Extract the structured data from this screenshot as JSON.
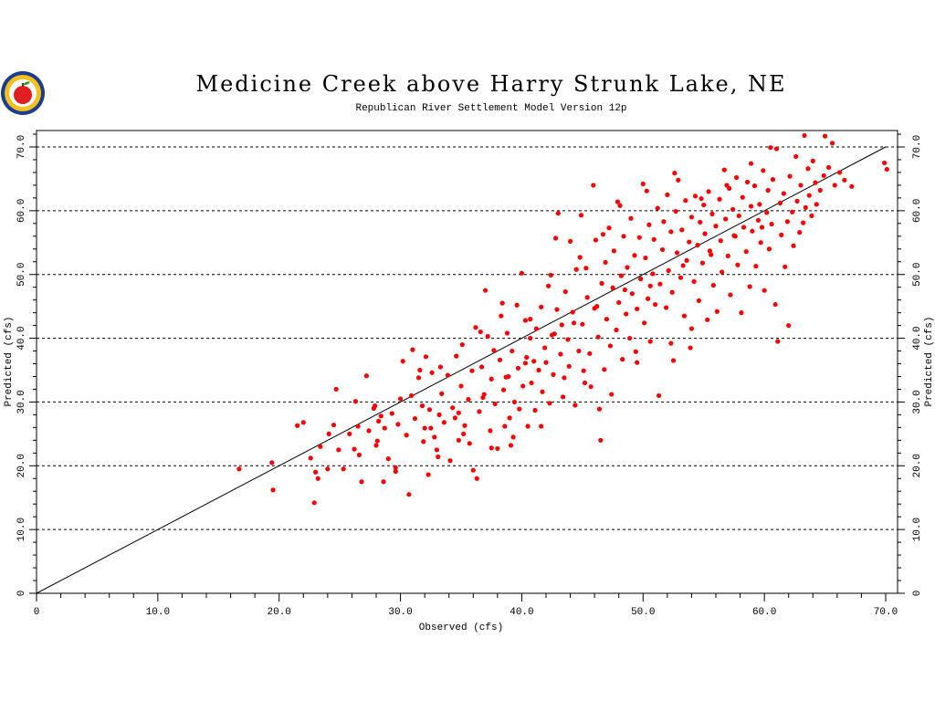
{
  "chart_data": {
    "type": "scatter",
    "title": "Medicine Creek above Harry Strunk Lake, NE",
    "subtitle": "Republican River Settlement Model Version 12p",
    "xlabel": "Observed (cfs)",
    "ylabel": "Predicted (cfs)",
    "ylabel_right": "Predicted (cfs)",
    "xlim": [
      0,
      70
    ],
    "ylim": [
      0,
      72
    ],
    "x_ticks": [
      {
        "v": 0,
        "label": "0"
      },
      {
        "v": 10,
        "label": "10.0"
      },
      {
        "v": 20,
        "label": "20.0"
      },
      {
        "v": 30,
        "label": "30.0"
      },
      {
        "v": 40,
        "label": "40.0"
      },
      {
        "v": 50,
        "label": "50.0"
      },
      {
        "v": 60,
        "label": "60.0"
      },
      {
        "v": 70,
        "label": "70.0"
      }
    ],
    "y_ticks": [
      {
        "v": 0,
        "label": "0"
      },
      {
        "v": 10,
        "label": "10.0"
      },
      {
        "v": 20,
        "label": "20.0"
      },
      {
        "v": 30,
        "label": "30.0"
      },
      {
        "v": 40,
        "label": "40.0"
      },
      {
        "v": 50,
        "label": "50.0"
      },
      {
        "v": 60,
        "label": "60.0"
      },
      {
        "v": 70,
        "label": "70.0"
      }
    ],
    "grid": "horizontal dashed at major y ticks",
    "reference_line": {
      "x": [
        0,
        70
      ],
      "y": [
        0,
        70
      ]
    },
    "point_color": "#ff0000",
    "line_color": "#000000",
    "points": [
      [
        16.7,
        19.5
      ],
      [
        19.4,
        20.5
      ],
      [
        19.5,
        16.2
      ],
      [
        21.5,
        26.3
      ],
      [
        22.0,
        26.8
      ],
      [
        22.6,
        21.2
      ],
      [
        22.9,
        14.2
      ],
      [
        23.0,
        19.0
      ],
      [
        23.2,
        18.0
      ],
      [
        23.4,
        23.0
      ],
      [
        24.0,
        19.5
      ],
      [
        24.5,
        26.4
      ],
      [
        24.7,
        32.0
      ],
      [
        24.9,
        22.5
      ],
      [
        25.3,
        19.5
      ],
      [
        25.8,
        25.0
      ],
      [
        26.3,
        30.1
      ],
      [
        26.6,
        21.7
      ],
      [
        26.8,
        17.5
      ],
      [
        27.2,
        34.1
      ],
      [
        27.4,
        25.5
      ],
      [
        27.8,
        29.0
      ],
      [
        28.0,
        23.2
      ],
      [
        28.2,
        27.0
      ],
      [
        28.4,
        27.8
      ],
      [
        28.6,
        17.5
      ],
      [
        28.7,
        25.9
      ],
      [
        29.0,
        21.1
      ],
      [
        29.3,
        28.2
      ],
      [
        29.6,
        19.7
      ],
      [
        29.8,
        26.5
      ],
      [
        30.2,
        36.4
      ],
      [
        30.5,
        24.8
      ],
      [
        30.7,
        15.5
      ],
      [
        30.9,
        31.0
      ],
      [
        31.0,
        38.2
      ],
      [
        31.2,
        27.4
      ],
      [
        31.5,
        33.8
      ],
      [
        31.8,
        29.4
      ],
      [
        32.0,
        25.9
      ],
      [
        32.1,
        37.1
      ],
      [
        32.3,
        18.6
      ],
      [
        32.4,
        28.8
      ],
      [
        32.6,
        34.6
      ],
      [
        32.8,
        24.5
      ],
      [
        33.0,
        22.5
      ],
      [
        33.2,
        28.0
      ],
      [
        33.4,
        31.3
      ],
      [
        33.6,
        26.8
      ],
      [
        33.9,
        34.2
      ],
      [
        34.1,
        20.8
      ],
      [
        34.3,
        29.1
      ],
      [
        34.5,
        27.5
      ],
      [
        34.8,
        24.0
      ],
      [
        35.0,
        32.5
      ],
      [
        35.1,
        39.0
      ],
      [
        35.3,
        26.3
      ],
      [
        35.6,
        30.4
      ],
      [
        35.7,
        23.5
      ],
      [
        35.9,
        34.9
      ],
      [
        36.0,
        19.3
      ],
      [
        36.2,
        41.7
      ],
      [
        36.3,
        18.0
      ],
      [
        36.5,
        28.5
      ],
      [
        36.7,
        35.5
      ],
      [
        36.9,
        31.2
      ],
      [
        37.0,
        47.5
      ],
      [
        37.2,
        40.3
      ],
      [
        37.4,
        25.5
      ],
      [
        37.5,
        33.6
      ],
      [
        37.7,
        38.1
      ],
      [
        37.8,
        29.7
      ],
      [
        38.0,
        22.7
      ],
      [
        38.2,
        36.6
      ],
      [
        38.3,
        43.5
      ],
      [
        38.5,
        31.9
      ],
      [
        38.6,
        26.2
      ],
      [
        38.8,
        40.8
      ],
      [
        38.9,
        34.0
      ],
      [
        39.0,
        27.5
      ],
      [
        39.2,
        38.0
      ],
      [
        39.3,
        24.5
      ],
      [
        39.4,
        30.0
      ],
      [
        39.6,
        45.2
      ],
      [
        39.7,
        35.3
      ],
      [
        39.8,
        28.9
      ],
      [
        40.0,
        50.2
      ],
      [
        40.1,
        32.5
      ],
      [
        40.3,
        42.8
      ],
      [
        40.4,
        37.0
      ],
      [
        40.5,
        26.2
      ],
      [
        40.7,
        40.0
      ],
      [
        40.8,
        33.0
      ],
      [
        41.0,
        36.4
      ],
      [
        41.1,
        28.7
      ],
      [
        41.2,
        41.5
      ],
      [
        41.4,
        35.0
      ],
      [
        41.6,
        44.9
      ],
      [
        41.7,
        31.6
      ],
      [
        41.9,
        38.5
      ],
      [
        42.0,
        36.2
      ],
      [
        42.2,
        48.2
      ],
      [
        42.3,
        29.8
      ],
      [
        42.5,
        40.5
      ],
      [
        42.6,
        34.3
      ],
      [
        42.8,
        55.7
      ],
      [
        42.9,
        44.5
      ],
      [
        43.0,
        59.6
      ],
      [
        43.2,
        37.5
      ],
      [
        43.3,
        42.1
      ],
      [
        43.5,
        33.8
      ],
      [
        43.6,
        47.3
      ],
      [
        43.8,
        39.8
      ],
      [
        43.9,
        35.6
      ],
      [
        44.0,
        55.2
      ],
      [
        44.2,
        44.1
      ],
      [
        44.4,
        29.5
      ],
      [
        44.5,
        50.8
      ],
      [
        44.7,
        38.0
      ],
      [
        44.9,
        59.3
      ],
      [
        45.0,
        42.2
      ],
      [
        45.1,
        34.9
      ],
      [
        45.3,
        51.0
      ],
      [
        45.4,
        46.4
      ],
      [
        45.6,
        37.6
      ],
      [
        45.7,
        32.4
      ],
      [
        45.9,
        64.0
      ],
      [
        46.0,
        44.7
      ],
      [
        46.1,
        55.4
      ],
      [
        46.3,
        40.2
      ],
      [
        46.4,
        28.9
      ],
      [
        46.5,
        24.0
      ],
      [
        46.6,
        48.6
      ],
      [
        46.8,
        35.1
      ],
      [
        46.9,
        51.9
      ],
      [
        47.0,
        43.0
      ],
      [
        47.2,
        57.3
      ],
      [
        47.3,
        38.8
      ],
      [
        47.5,
        47.9
      ],
      [
        47.6,
        53.7
      ],
      [
        47.8,
        41.3
      ],
      [
        47.9,
        61.4
      ],
      [
        48.0,
        45.6
      ],
      [
        48.2,
        49.8
      ],
      [
        48.3,
        36.7
      ],
      [
        48.4,
        56.0
      ],
      [
        48.6,
        43.8
      ],
      [
        48.7,
        51.1
      ],
      [
        48.9,
        40.0
      ],
      [
        49.0,
        58.8
      ],
      [
        49.1,
        47.0
      ],
      [
        49.3,
        53.0
      ],
      [
        49.4,
        37.9
      ],
      [
        49.5,
        44.6
      ],
      [
        49.7,
        55.8
      ],
      [
        49.8,
        49.3
      ],
      [
        50.0,
        64.2
      ],
      [
        50.1,
        42.4
      ],
      [
        50.2,
        52.6
      ],
      [
        50.4,
        46.2
      ],
      [
        50.5,
        57.8
      ],
      [
        50.6,
        39.5
      ],
      [
        50.8,
        50.1
      ],
      [
        50.9,
        55.5
      ],
      [
        51.0,
        45.3
      ],
      [
        51.2,
        60.4
      ],
      [
        51.3,
        31.0
      ],
      [
        51.4,
        48.5
      ],
      [
        51.6,
        53.9
      ],
      [
        51.7,
        58.3
      ],
      [
        51.9,
        44.8
      ],
      [
        52.0,
        62.5
      ],
      [
        52.1,
        50.6
      ],
      [
        52.3,
        56.7
      ],
      [
        52.4,
        47.2
      ],
      [
        52.5,
        36.5
      ],
      [
        52.7,
        59.9
      ],
      [
        52.8,
        53.4
      ],
      [
        52.9,
        64.8
      ],
      [
        53.1,
        49.5
      ],
      [
        53.2,
        57.0
      ],
      [
        53.4,
        43.5
      ],
      [
        53.5,
        61.6
      ],
      [
        53.6,
        52.2
      ],
      [
        53.8,
        55.1
      ],
      [
        53.9,
        38.5
      ],
      [
        54.0,
        59.0
      ],
      [
        54.2,
        48.9
      ],
      [
        54.3,
        62.3
      ],
      [
        54.5,
        54.6
      ],
      [
        54.6,
        45.9
      ],
      [
        54.7,
        58.2
      ],
      [
        54.9,
        51.8
      ],
      [
        55.0,
        60.9
      ],
      [
        55.1,
        56.4
      ],
      [
        55.3,
        42.9
      ],
      [
        55.4,
        63.0
      ],
      [
        55.6,
        53.1
      ],
      [
        55.7,
        59.5
      ],
      [
        55.8,
        48.3
      ],
      [
        56.0,
        57.6
      ],
      [
        56.1,
        44.2
      ],
      [
        56.3,
        61.8
      ],
      [
        56.4,
        55.3
      ],
      [
        56.5,
        50.4
      ],
      [
        56.7,
        66.4
      ],
      [
        56.8,
        58.7
      ],
      [
        57.0,
        52.9
      ],
      [
        57.1,
        63.5
      ],
      [
        57.2,
        46.8
      ],
      [
        57.4,
        60.2
      ],
      [
        57.5,
        56.1
      ],
      [
        57.7,
        65.2
      ],
      [
        57.8,
        51.5
      ],
      [
        57.9,
        59.2
      ],
      [
        58.1,
        44.0
      ],
      [
        58.2,
        62.1
      ],
      [
        58.3,
        57.4
      ],
      [
        58.5,
        53.6
      ],
      [
        58.6,
        64.5
      ],
      [
        58.8,
        48.1
      ],
      [
        58.9,
        60.7
      ],
      [
        59.0,
        56.8
      ],
      [
        59.2,
        63.9
      ],
      [
        59.3,
        51.3
      ],
      [
        59.5,
        58.5
      ],
      [
        59.6,
        61.0
      ],
      [
        59.7,
        55.0
      ],
      [
        59.9,
        66.3
      ],
      [
        60.0,
        47.5
      ],
      [
        60.2,
        59.7
      ],
      [
        60.3,
        63.2
      ],
      [
        60.4,
        54.0
      ],
      [
        60.6,
        57.9
      ],
      [
        60.7,
        64.9
      ],
      [
        60.9,
        45.3
      ],
      [
        61.0,
        69.7
      ],
      [
        61.1,
        39.5
      ],
      [
        61.3,
        61.2
      ],
      [
        61.4,
        56.2
      ],
      [
        61.6,
        62.7
      ],
      [
        61.7,
        51.2
      ],
      [
        61.9,
        58.3
      ],
      [
        62.0,
        42.0
      ],
      [
        62.1,
        65.4
      ],
      [
        62.3,
        59.8
      ],
      [
        62.4,
        54.5
      ],
      [
        62.6,
        68.5
      ],
      [
        62.7,
        61.5
      ],
      [
        62.9,
        56.6
      ],
      [
        63.0,
        64.0
      ],
      [
        63.2,
        58.1
      ],
      [
        63.3,
        71.8
      ],
      [
        63.4,
        60.5
      ],
      [
        63.6,
        66.6
      ],
      [
        63.7,
        62.4
      ],
      [
        63.9,
        59.2
      ],
      [
        64.0,
        67.8
      ],
      [
        64.2,
        64.4
      ],
      [
        64.3,
        61.0
      ],
      [
        64.6,
        63.2
      ],
      [
        64.9,
        65.5
      ],
      [
        65.0,
        71.7
      ],
      [
        65.3,
        66.8
      ],
      [
        65.6,
        70.6
      ],
      [
        65.8,
        64.0
      ],
      [
        66.2,
        66.0
      ],
      [
        66.6,
        64.8
      ],
      [
        67.2,
        63.8
      ],
      [
        69.9,
        67.5
      ],
      [
        70.1,
        66.5
      ],
      [
        54.0,
        41.5
      ],
      [
        52.3,
        39.2
      ],
      [
        49.5,
        36.2
      ],
      [
        47.4,
        31.2
      ],
      [
        45.2,
        33.0
      ],
      [
        43.4,
        30.8
      ],
      [
        41.6,
        26.2
      ],
      [
        39.1,
        23.2
      ],
      [
        37.5,
        22.8
      ],
      [
        35.2,
        25.0
      ],
      [
        33.1,
        21.4
      ],
      [
        31.9,
        23.8
      ],
      [
        29.6,
        19.1
      ],
      [
        28.1,
        23.9
      ],
      [
        26.2,
        22.6
      ],
      [
        24.1,
        25.0
      ],
      [
        44.8,
        52.7
      ],
      [
        46.7,
        56.3
      ],
      [
        48.1,
        60.8
      ],
      [
        50.3,
        63.1
      ],
      [
        52.6,
        65.9
      ],
      [
        54.8,
        61.9
      ],
      [
        56.9,
        64.0
      ],
      [
        58.9,
        67.4
      ],
      [
        60.5,
        69.9
      ],
      [
        40.7,
        43.0
      ],
      [
        42.4,
        49.9
      ],
      [
        38.4,
        45.5
      ],
      [
        36.6,
        41.0
      ],
      [
        34.6,
        37.2
      ],
      [
        33.3,
        35.5
      ],
      [
        31.6,
        35.0
      ],
      [
        30.0,
        30.5
      ],
      [
        27.9,
        29.4
      ],
      [
        26.5,
        26.2
      ],
      [
        32.5,
        25.9
      ],
      [
        34.8,
        28.3
      ],
      [
        36.8,
        30.7
      ],
      [
        38.7,
        33.9
      ],
      [
        40.3,
        36.1
      ],
      [
        42.7,
        40.7
      ],
      [
        44.3,
        42.4
      ],
      [
        46.2,
        45.0
      ],
      [
        48.5,
        47.6
      ],
      [
        50.6,
        48.2
      ],
      [
        53.3,
        51.4
      ],
      [
        55.5,
        53.7
      ],
      [
        57.6,
        56.0
      ],
      [
        59.8,
        57.4
      ]
    ]
  }
}
